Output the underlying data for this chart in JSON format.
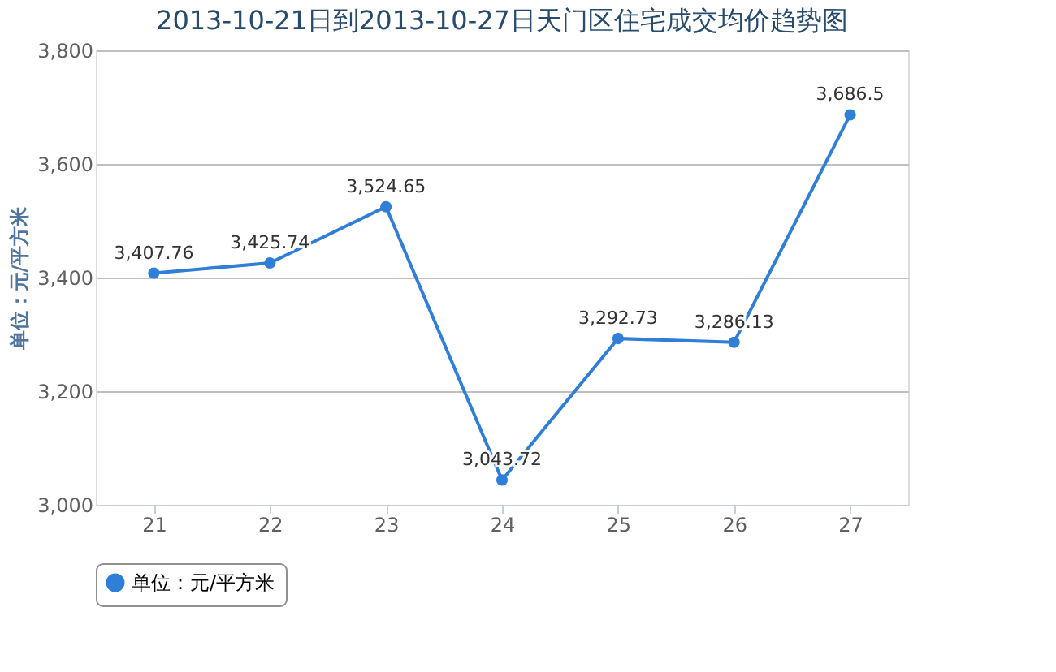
{
  "chart_data": {
    "type": "line",
    "title": "2013-10-21日到2013-10-27日天门区住宅成交均价趋势图",
    "categories": [
      "21",
      "22",
      "23",
      "24",
      "25",
      "26",
      "27"
    ],
    "series": [
      {
        "name": "单位：元/平方米",
        "color": "#2f7ed8",
        "values": [
          3407.76,
          3425.74,
          3524.65,
          3043.72,
          3292.73,
          3286.13,
          3686.5
        ],
        "value_labels": [
          "3,407.76",
          "3,425.74",
          "3,524.65",
          "3,043.72",
          "3,292.73",
          "3,286.13",
          "3,686.5"
        ]
      }
    ],
    "ylabel": "单位：元/平方米",
    "ylim": [
      3000,
      3800
    ],
    "yticks": [
      {
        "value": 3000,
        "label": "3,000"
      },
      {
        "value": 3200,
        "label": "3,200"
      },
      {
        "value": 3400,
        "label": "3,400"
      },
      {
        "value": 3600,
        "label": "3,600"
      },
      {
        "value": 3800,
        "label": "3,800"
      }
    ],
    "grid": "y",
    "legend": "bottom",
    "marker": "circle",
    "line_style": "solid"
  }
}
